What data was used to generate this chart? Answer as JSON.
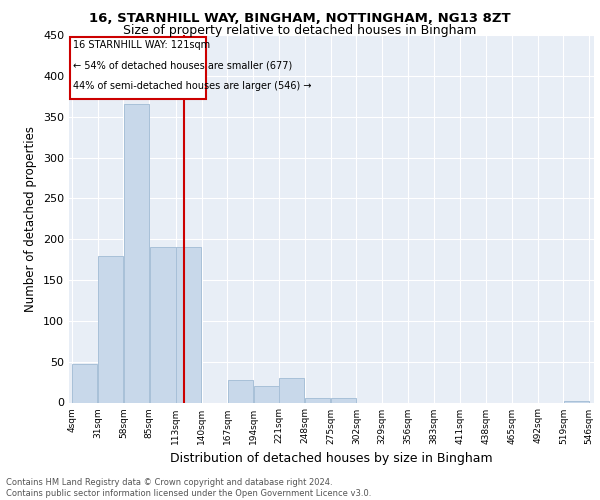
{
  "title1": "16, STARNHILL WAY, BINGHAM, NOTTINGHAM, NG13 8ZT",
  "title2": "Size of property relative to detached houses in Bingham",
  "xlabel": "Distribution of detached houses by size in Bingham",
  "ylabel": "Number of detached properties",
  "footnote": "Contains HM Land Registry data © Crown copyright and database right 2024.\nContains public sector information licensed under the Open Government Licence v3.0.",
  "annotation_line1": "16 STARNHILL WAY: 121sqm",
  "annotation_line2": "← 54% of detached houses are smaller (677)",
  "annotation_line3": "44% of semi-detached houses are larger (546) →",
  "property_size": 121,
  "bin_edges": [
    4,
    31,
    58,
    85,
    113,
    140,
    167,
    194,
    221,
    248,
    275,
    302,
    329,
    356,
    383,
    411,
    438,
    465,
    492,
    519,
    546
  ],
  "bar_heights": [
    47,
    180,
    365,
    190,
    190,
    0,
    27,
    20,
    30,
    5,
    5,
    0,
    0,
    0,
    0,
    0,
    0,
    0,
    0,
    2
  ],
  "bar_color": "#c8d8ea",
  "bar_edge_color": "#a8c0d8",
  "vline_color": "#cc0000",
  "vline_x": 121,
  "bg_color": "#e8eef6",
  "annotation_box_color": "#cc0000",
  "ylim": [
    0,
    450
  ],
  "yticks": [
    0,
    50,
    100,
    150,
    200,
    250,
    300,
    350,
    400,
    450
  ]
}
